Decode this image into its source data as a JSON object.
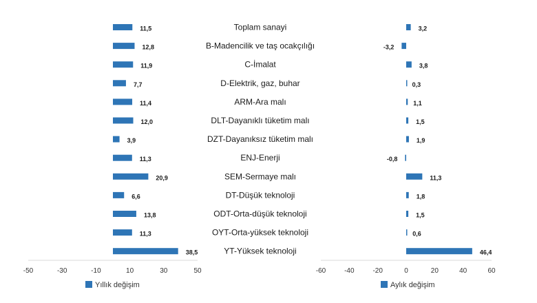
{
  "chart_data": {
    "type": "bar",
    "orientation": "horizontal",
    "categories": [
      "Toplam sanayi",
      "B-Madencilik ve taş ocakçılığı",
      "C-İmalat",
      "D-Elektrik, gaz, buhar",
      "ARM-Ara malı",
      "DLT-Dayanıklı tüketim malı",
      "DZT-Dayanıksız tüketim malı",
      "ENJ-Enerji",
      "SEM-Sermaye malı",
      "DT-Düşük teknoloji",
      "ODT-Orta-düşük teknoloji",
      "OYT-Orta-yüksek teknoloji",
      "YT-Yüksek teknoloji"
    ],
    "panels": [
      {
        "series_name": "Yıllık değişim",
        "values": [
          11.5,
          12.8,
          11.9,
          7.7,
          11.4,
          12.0,
          3.9,
          11.3,
          20.9,
          6.6,
          13.8,
          11.3,
          38.5
        ],
        "value_labels": [
          "11,5",
          "12,8",
          "11,9",
          "7,7",
          "11,4",
          "12,0",
          "3,9",
          "11,3",
          "20,9",
          "6,6",
          "13,8",
          "11,3",
          "38,5"
        ],
        "xlim": [
          -50,
          50
        ],
        "ticks": [
          -50,
          -30,
          -10,
          10,
          30,
          50
        ],
        "tick_labels": [
          "-50",
          "-30",
          "-10",
          "10",
          "30",
          "50"
        ],
        "color": "#2E75B6"
      },
      {
        "series_name": "Aylık değişim",
        "values": [
          3.2,
          -3.2,
          3.8,
          0.3,
          1.1,
          1.5,
          1.9,
          -0.8,
          11.3,
          1.8,
          1.5,
          0.6,
          46.4
        ],
        "value_labels": [
          "3,2",
          "-3,2",
          "3,8",
          "0,3",
          "1,1",
          "1,5",
          "1,9",
          "-0,8",
          "11,3",
          "1,8",
          "1,5",
          "0,6",
          "46,4"
        ],
        "xlim": [
          -60,
          60
        ],
        "ticks": [
          -60,
          -40,
          -20,
          0,
          20,
          40,
          60
        ],
        "tick_labels": [
          "-60",
          "-40",
          "-20",
          "0",
          "20",
          "40",
          "60"
        ],
        "color": "#2E75B6"
      }
    ],
    "legend_placement": "bottom-left",
    "grid": false,
    "title": "",
    "xlabel": "",
    "ylabel": ""
  }
}
